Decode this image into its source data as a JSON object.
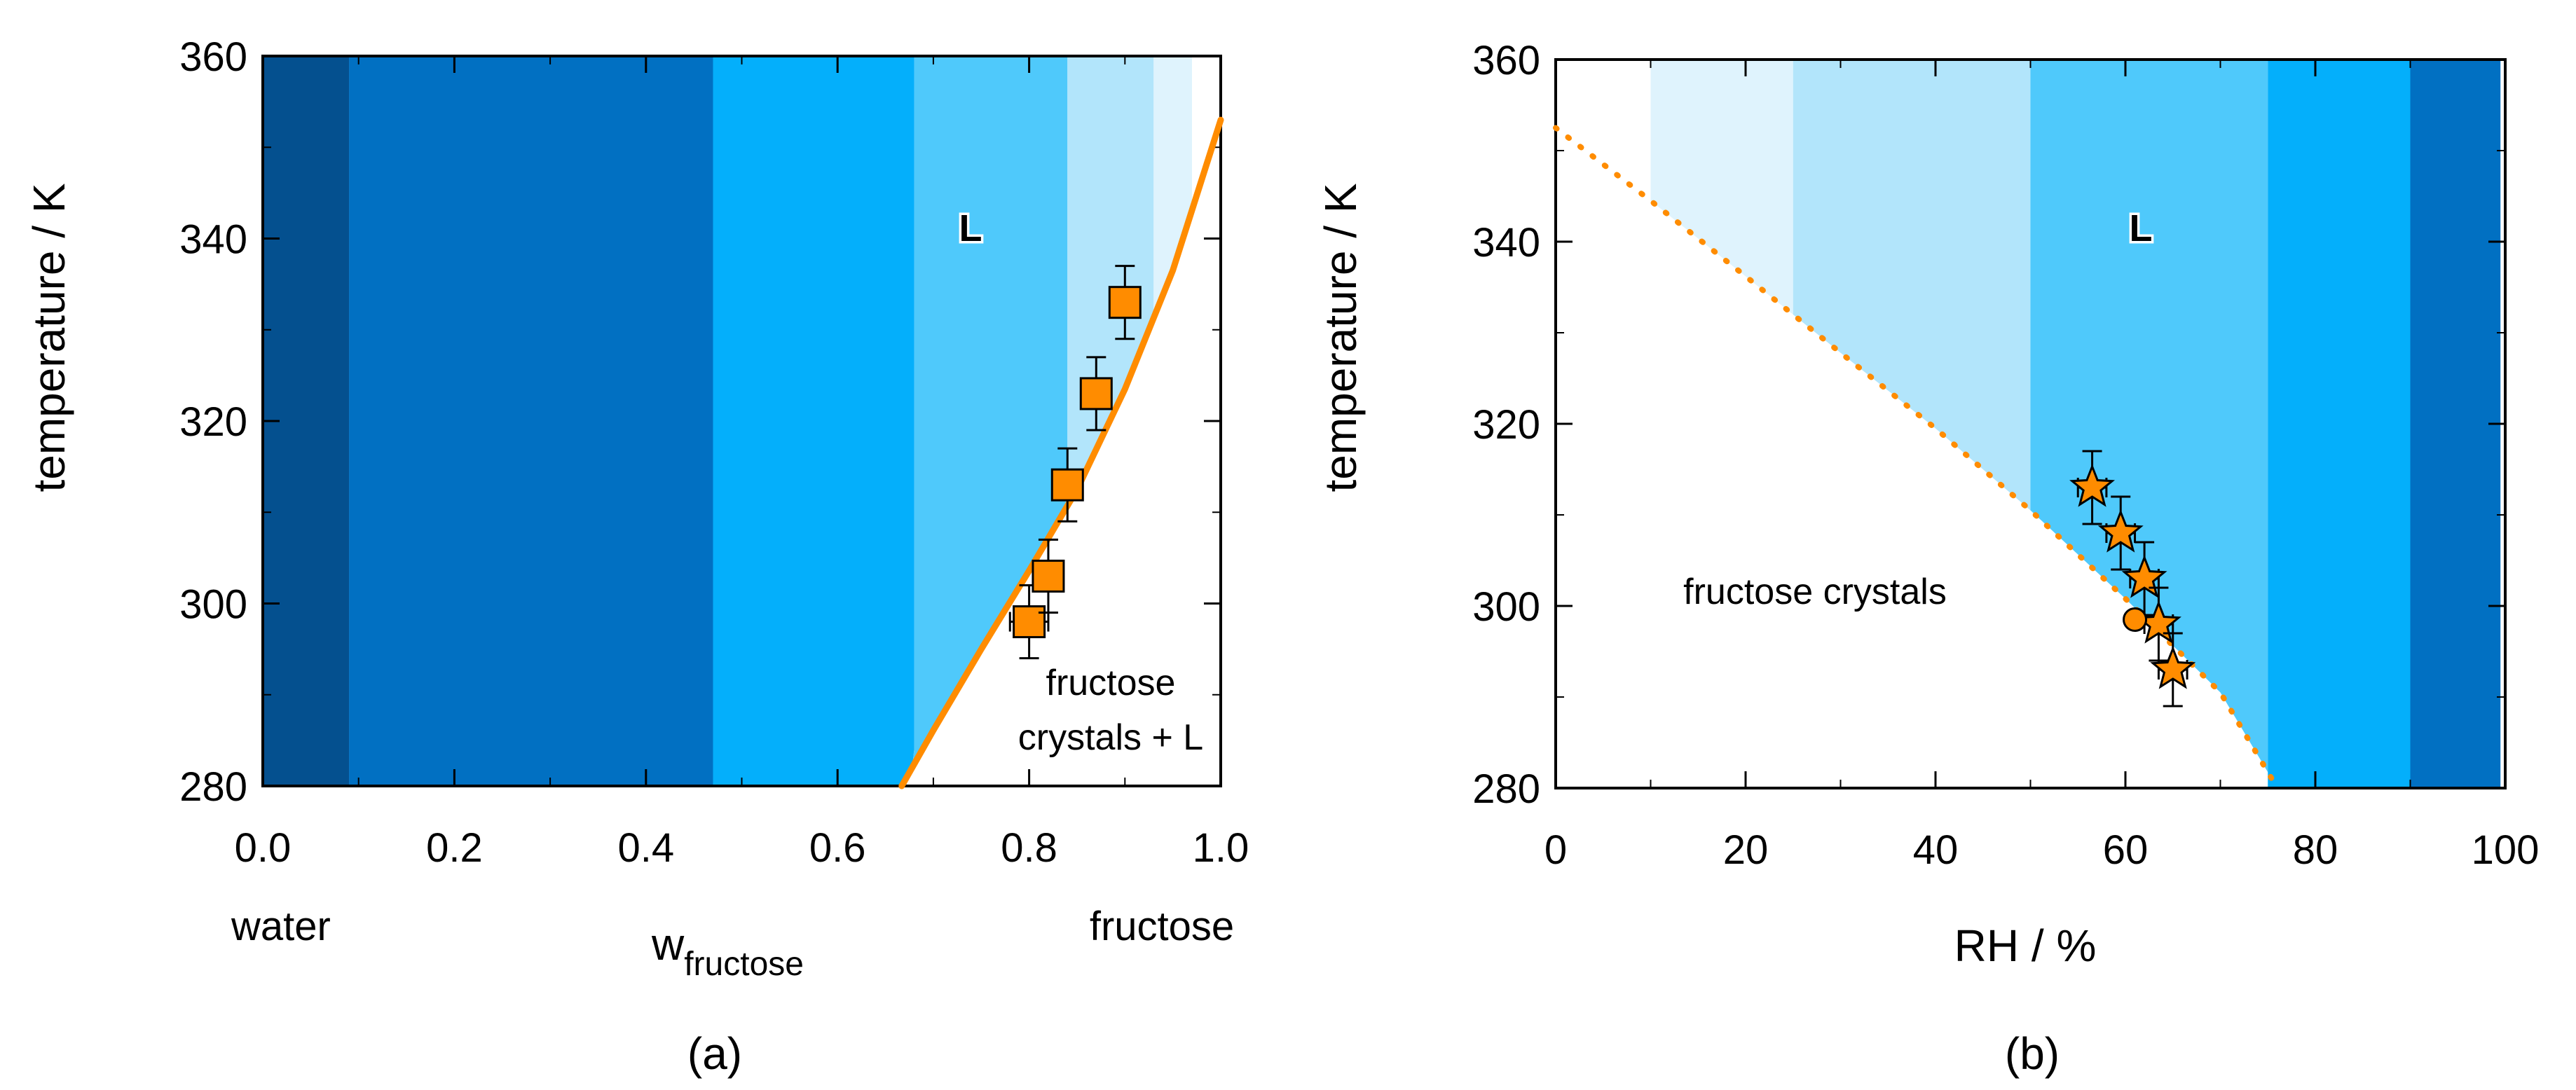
{
  "colors": {
    "scale": [
      "#04508f",
      "#0170c2",
      "#04affb",
      "#4fc9fb",
      "#b2e5fb",
      "#dff3fd",
      "#ffffff"
    ],
    "line": "#ff8c00",
    "marker": "#ff8c00",
    "axis": "#000000"
  },
  "chart_data": [
    {
      "id": "a",
      "type": "line",
      "caption": "(a)",
      "xlabel": "w",
      "xlabel_sub": "fructose",
      "ylabel": "temperature / K",
      "xlim": [
        0,
        1
      ],
      "ylim": [
        280,
        360
      ],
      "xticks": [
        {
          "v": 0.0,
          "label": "0.0"
        },
        {
          "v": 0.2,
          "label": "0.2"
        },
        {
          "v": 0.4,
          "label": "0.4"
        },
        {
          "v": 0.6,
          "label": "0.6"
        },
        {
          "v": 0.8,
          "label": "0.8"
        },
        {
          "v": 1.0,
          "label": "1.0"
        }
      ],
      "yticks": [
        {
          "v": 280,
          "label": "280"
        },
        {
          "v": 300,
          "label": "300"
        },
        {
          "v": 320,
          "label": "320"
        },
        {
          "v": 340,
          "label": "340"
        },
        {
          "v": 360,
          "label": "360"
        }
      ],
      "endpoint_labels": {
        "left": "water",
        "right": "fructose"
      },
      "bands": [
        {
          "x0": 0.0,
          "x1": 0.09,
          "color": "#04508f",
          "clip": "none"
        },
        {
          "x0": 0.09,
          "x1": 0.47,
          "color": "#0170c2",
          "clip": "none"
        },
        {
          "x0": 0.47,
          "x1": 0.68,
          "color": "#04affb",
          "clip": "curve"
        },
        {
          "x0": 0.68,
          "x1": 0.84,
          "color": "#4fc9fb",
          "clip": "curve"
        },
        {
          "x0": 0.84,
          "x1": 0.93,
          "color": "#b2e5fb",
          "clip": "curve"
        },
        {
          "x0": 0.93,
          "x1": 0.97,
          "color": "#dff3fd",
          "clip": "curve"
        }
      ],
      "liquidus": {
        "name": "solubility curve",
        "style": "solid",
        "x": [
          0.667,
          0.7,
          0.75,
          0.8,
          0.85,
          0.9,
          0.95,
          1.0
        ],
        "y": [
          280,
          286.1,
          295.0,
          303.6,
          312.5,
          323.5,
          336.5,
          353.0
        ]
      },
      "points": {
        "marker": "square",
        "x": [
          0.8,
          0.82,
          0.84,
          0.87,
          0.9
        ],
        "y": [
          298,
          303,
          313,
          323,
          333
        ],
        "xerr": [
          0.02,
          0.015,
          0.015,
          0.01,
          0.01
        ],
        "yerr": [
          4,
          4,
          4,
          4,
          4
        ]
      },
      "annotations": [
        {
          "key": "L",
          "text": "L",
          "x": 0.74,
          "y": 341
        },
        {
          "key": "crys1",
          "text": "fructose",
          "x": 0.87,
          "y": 290
        },
        {
          "key": "crys2",
          "text": "crystals + L",
          "x": 0.87,
          "y": 284
        }
      ]
    },
    {
      "id": "b",
      "type": "line",
      "caption": "(b)",
      "xlabel": "RH / %",
      "ylabel": "temperature / K",
      "xlim": [
        0,
        100
      ],
      "ylim": [
        280,
        360
      ],
      "xticks": [
        {
          "v": 0,
          "label": "0"
        },
        {
          "v": 20,
          "label": "20"
        },
        {
          "v": 40,
          "label": "40"
        },
        {
          "v": 60,
          "label": "60"
        },
        {
          "v": 80,
          "label": "80"
        },
        {
          "v": 100,
          "label": "100"
        }
      ],
      "yticks": [
        {
          "v": 280,
          "label": "280"
        },
        {
          "v": 300,
          "label": "300"
        },
        {
          "v": 320,
          "label": "320"
        },
        {
          "v": 340,
          "label": "340"
        },
        {
          "v": 360,
          "label": "360"
        }
      ],
      "bands": [
        {
          "x0": 10,
          "x1": 25,
          "color": "#dff3fd",
          "clip": "curve"
        },
        {
          "x0": 25,
          "x1": 50,
          "color": "#b2e5fb",
          "clip": "curve"
        },
        {
          "x0": 50,
          "x1": 75,
          "color": "#4fc9fb",
          "clip": "curve"
        },
        {
          "x0": 75,
          "x1": 90,
          "color": "#04affb",
          "clip": "none"
        },
        {
          "x0": 90,
          "x1": 99.5,
          "color": "#0170c2",
          "clip": "none"
        }
      ],
      "liquidus": {
        "name": "deliquescence curve",
        "style": "dotted",
        "x": [
          0,
          10,
          20,
          30,
          40,
          50,
          60,
          70,
          76
        ],
        "y": [
          352.5,
          344.5,
          336.2,
          327.8,
          319.5,
          310.5,
          300.8,
          290.5,
          280
        ]
      },
      "points": {
        "marker": "star",
        "x": [
          56.5,
          59.5,
          62.0,
          63.5,
          65.0
        ],
        "y": [
          313,
          308,
          303,
          298,
          293
        ],
        "xerr": [
          1.5,
          1.5,
          1.5,
          1.5,
          1.5
        ],
        "yerr": [
          4,
          4,
          4,
          4,
          4
        ]
      },
      "extra_points": {
        "marker": "circle",
        "x": [
          61.0
        ],
        "y": [
          298.5
        ]
      },
      "annotations": [
        {
          "key": "L",
          "text": "L",
          "x": 61,
          "y": 341
        },
        {
          "key": "crys",
          "text": "fructose crystals",
          "x": 36,
          "y": 299
        }
      ]
    }
  ]
}
